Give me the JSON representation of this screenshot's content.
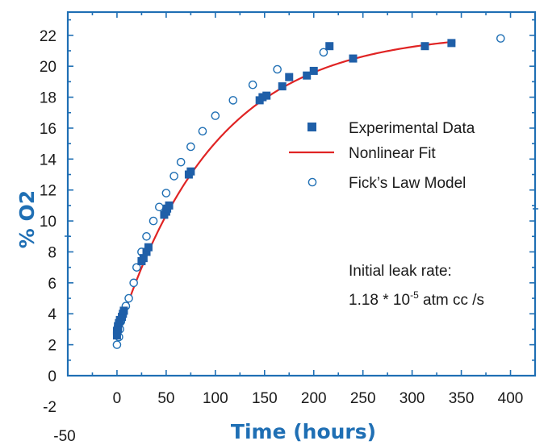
{
  "chart_data": {
    "type": "scatter",
    "xlabel": "Time (hours)",
    "ylabel": "% O2",
    "xlim": [
      -50,
      425
    ],
    "ylim": [
      0,
      23.5
    ],
    "x_ticks": [
      0,
      50,
      100,
      150,
      200,
      250,
      300,
      350,
      400
    ],
    "y_ticks": [
      0,
      2,
      4,
      6,
      8,
      10,
      12,
      14,
      16,
      18,
      20,
      22
    ],
    "extra_tick_labels": {
      "x_min": "-50",
      "y_min": "-2"
    },
    "colors": {
      "axis": "#1f6fb4",
      "experimental": "#1f5fa8",
      "fit": "#e02424",
      "model": "#1f6fb4"
    },
    "legend_position": "right-middle",
    "grid": false,
    "series": [
      {
        "name": "Experimental Data",
        "marker": "filled-square",
        "points": [
          [
            0,
            2.6
          ],
          [
            0,
            2.9
          ],
          [
            1,
            3.0
          ],
          [
            1,
            3.2
          ],
          [
            2,
            3.4
          ],
          [
            3,
            3.6
          ],
          [
            5,
            3.8
          ],
          [
            6,
            4.0
          ],
          [
            7,
            4.2
          ],
          [
            25,
            7.4
          ],
          [
            27,
            7.6
          ],
          [
            30,
            8.0
          ],
          [
            32,
            8.3
          ],
          [
            48,
            10.4
          ],
          [
            50,
            10.6
          ],
          [
            51,
            10.8
          ],
          [
            53,
            11.0
          ],
          [
            73,
            13.0
          ],
          [
            75,
            13.2
          ],
          [
            145,
            17.8
          ],
          [
            148,
            18.0
          ],
          [
            152,
            18.1
          ],
          [
            168,
            18.7
          ],
          [
            175,
            19.3
          ],
          [
            193,
            19.4
          ],
          [
            200,
            19.7
          ],
          [
            216,
            21.3
          ],
          [
            240,
            20.5
          ],
          [
            313,
            21.3
          ],
          [
            340,
            21.5
          ]
        ]
      },
      {
        "name": "Nonlinear Fit",
        "marker": "line",
        "model": {
          "type": "exponential",
          "y0": 2.6,
          "ymax": 22.2,
          "k": 0.0101,
          "x_start": 0,
          "x_end": 345
        }
      },
      {
        "name": "Fick’s Law Model",
        "marker": "open-circle",
        "points": [
          [
            0,
            2.0
          ],
          [
            2,
            2.5
          ],
          [
            3,
            3.0
          ],
          [
            4,
            3.5
          ],
          [
            6,
            4.0
          ],
          [
            9,
            4.5
          ],
          [
            12,
            5.0
          ],
          [
            17,
            6.0
          ],
          [
            20,
            7.0
          ],
          [
            25,
            8.0
          ],
          [
            30,
            9.0
          ],
          [
            37,
            10.0
          ],
          [
            43,
            10.9
          ],
          [
            50,
            11.8
          ],
          [
            58,
            12.9
          ],
          [
            65,
            13.8
          ],
          [
            75,
            14.8
          ],
          [
            87,
            15.8
          ],
          [
            100,
            16.8
          ],
          [
            118,
            17.8
          ],
          [
            138,
            18.8
          ],
          [
            163,
            19.8
          ],
          [
            210,
            20.9
          ],
          [
            390,
            21.8
          ]
        ]
      }
    ],
    "annotation": {
      "line1": "Initial leak rate:",
      "line2_base": "1.18 * 10",
      "line2_exp": "-5",
      "line2_unit": " atm cc /s"
    }
  }
}
